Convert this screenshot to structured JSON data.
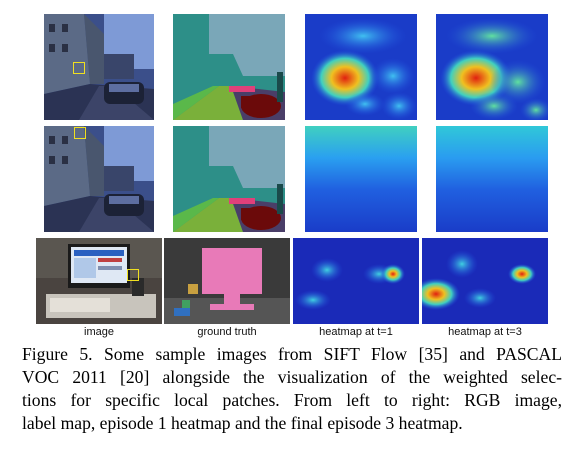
{
  "figure": {
    "column_labels": [
      "image",
      "ground truth",
      "heatmap at t=1",
      "heatmap at t=3"
    ],
    "caption_lines": [
      "Figure 5. Some sample images from SIFT Flow [35] and PASCAL",
      "VOC 2011 [20] alongside the visualization of the weighted selec-",
      "tions for specific local patches. From left to right: RGB image,",
      "label map, episode 1 heatmap and the final episode 3 heatmap."
    ],
    "colors": {
      "highlight_box": "#f0e020",
      "heatmap_low": "#1a3cc8",
      "heatmap_high": "#e02010",
      "sky_label": "#7aa7b8",
      "building_label": "#2d8f88",
      "road_label": "#7ab03a",
      "car_label": "#6b0a0a",
      "pink_label": "#e87ab8"
    }
  }
}
